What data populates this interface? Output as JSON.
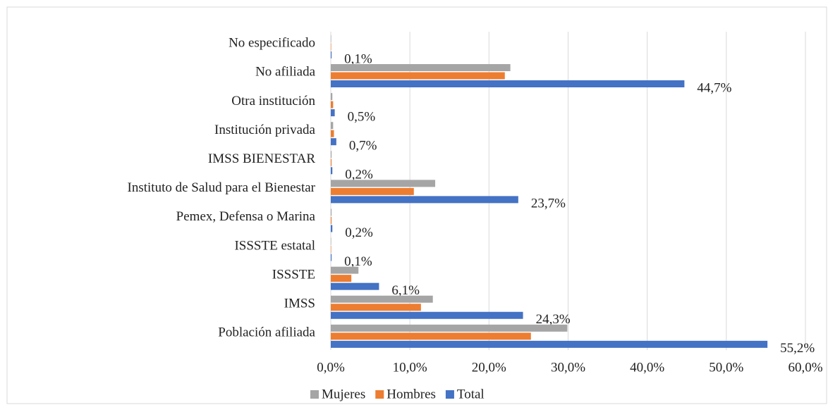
{
  "chart_data": {
    "type": "bar",
    "orientation": "horizontal",
    "categories": [
      "No especificado",
      "No afiliada",
      "Otra institución",
      "Institución privada",
      "IMSS BIENESTAR",
      "Instituto de Salud para el Bienestar",
      "Pemex, Defensa o Marina",
      "ISSSTE estatal",
      "ISSSTE",
      "IMSS",
      "Población afiliada"
    ],
    "series": [
      {
        "name": "Mujeres",
        "color": "#a5a5a5",
        "values": [
          0.05,
          22.7,
          0.2,
          0.3,
          0.1,
          13.2,
          0.1,
          0.05,
          3.5,
          12.9,
          29.9
        ]
      },
      {
        "name": "Hombres",
        "color": "#ed7d31",
        "values": [
          0.05,
          22.0,
          0.3,
          0.4,
          0.1,
          10.5,
          0.1,
          0.05,
          2.6,
          11.4,
          25.3
        ]
      },
      {
        "name": "Total",
        "color": "#4472c4",
        "values": [
          0.1,
          44.7,
          0.5,
          0.7,
          0.2,
          23.7,
          0.2,
          0.1,
          6.1,
          24.3,
          55.2
        ],
        "value_labels": [
          "0,1%",
          "44,7%",
          "0,5%",
          "0,7%",
          "0,2%",
          "23,7%",
          "0,2%",
          "0,1%",
          "6,1%",
          "24,3%",
          "55,2%"
        ]
      }
    ],
    "xlim": [
      0,
      60
    ],
    "xticks": [
      {
        "value": 0,
        "label": "0,0%"
      },
      {
        "value": 10,
        "label": "10,0%"
      },
      {
        "value": 20,
        "label": "20,0%"
      },
      {
        "value": 30,
        "label": "30,0%"
      },
      {
        "value": 40,
        "label": "40,0%"
      },
      {
        "value": 50,
        "label": "50,0%"
      },
      {
        "value": 60,
        "label": "60,0%"
      }
    ],
    "grid": true,
    "legend": "bottom"
  }
}
